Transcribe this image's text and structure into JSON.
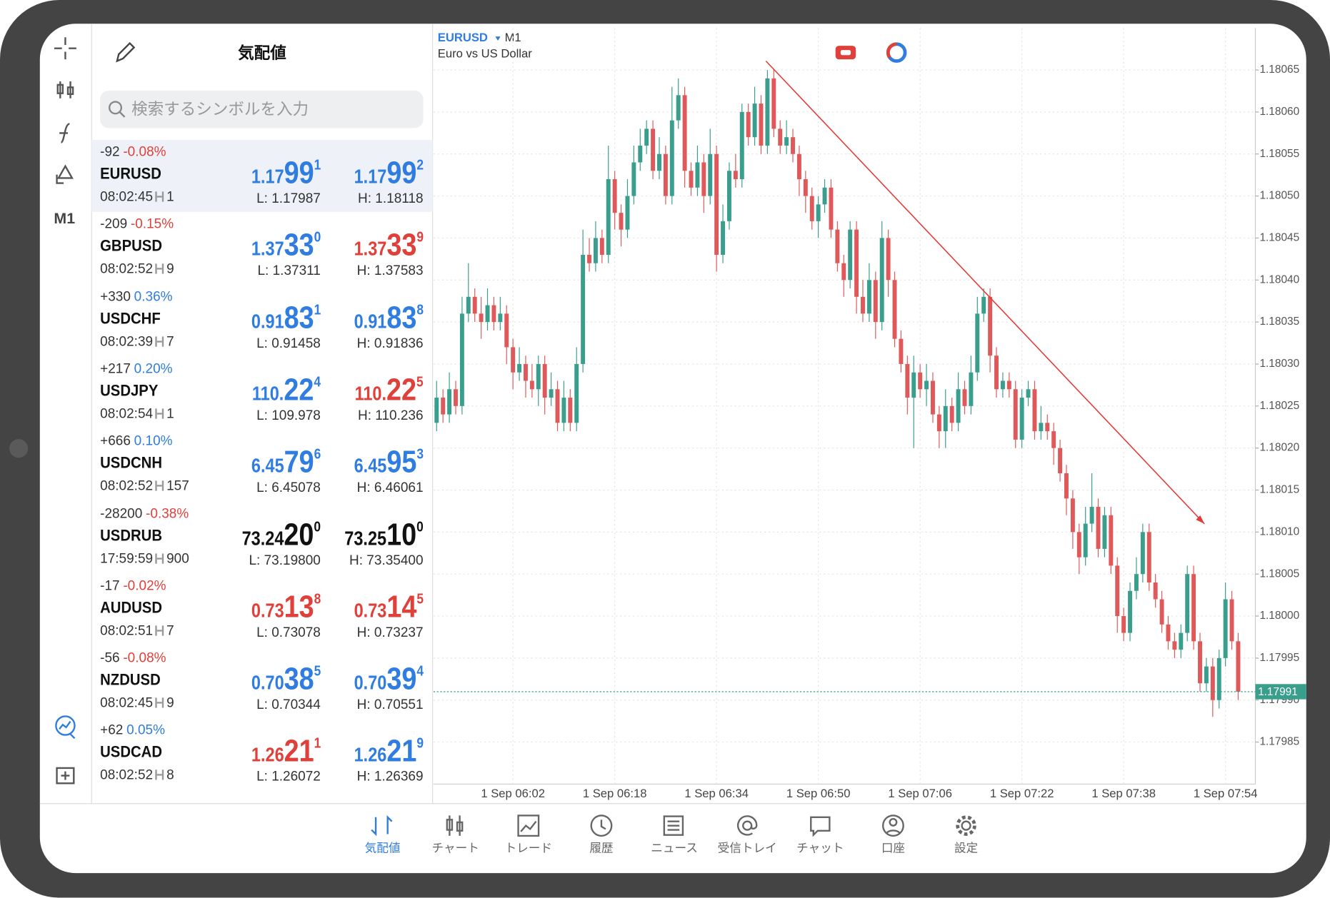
{
  "header": {
    "title": "気配値",
    "search_placeholder": "検索するシンボルを入力",
    "timeframe": "M1"
  },
  "quotes": [
    {
      "change": "-92",
      "percent": "-0.08%",
      "percent_color": "#e0403a",
      "symbol": "EURUSD",
      "time": "08:02:45",
      "spread": "1",
      "bid": [
        "1.17",
        "99",
        "1"
      ],
      "bid_color": "#2f7de1",
      "ask": [
        "1.17",
        "99",
        "2"
      ],
      "ask_color": "#2f7de1",
      "low": "L: 1.17987",
      "high": "H: 1.18118",
      "selected": true
    },
    {
      "change": "-209",
      "percent": "-0.15%",
      "percent_color": "#e0403a",
      "symbol": "GBPUSD",
      "time": "08:02:52",
      "spread": "9",
      "bid": [
        "1.37",
        "33",
        "0"
      ],
      "bid_color": "#2f7de1",
      "ask": [
        "1.37",
        "33",
        "9"
      ],
      "ask_color": "#e0403a",
      "low": "L: 1.37311",
      "high": "H: 1.37583"
    },
    {
      "change": "+330",
      "percent": "0.36%",
      "percent_color": "#2f7de1",
      "symbol": "USDCHF",
      "time": "08:02:39",
      "spread": "7",
      "bid": [
        "0.91",
        "83",
        "1"
      ],
      "bid_color": "#2f7de1",
      "ask": [
        "0.91",
        "83",
        "8"
      ],
      "ask_color": "#2f7de1",
      "low": "L: 0.91458",
      "high": "H: 0.91836"
    },
    {
      "change": "+217",
      "percent": "0.20%",
      "percent_color": "#2f7de1",
      "symbol": "USDJPY",
      "time": "08:02:54",
      "spread": "1",
      "bid": [
        "110.",
        "22",
        "4"
      ],
      "bid_color": "#2f7de1",
      "ask": [
        "110.",
        "22",
        "5"
      ],
      "ask_color": "#e0403a",
      "low": "L: 109.978",
      "high": "H: 110.236"
    },
    {
      "change": "+666",
      "percent": "0.10%",
      "percent_color": "#2f7de1",
      "symbol": "USDCNH",
      "time": "08:02:52",
      "spread": "157",
      "bid": [
        "6.45",
        "79",
        "6"
      ],
      "bid_color": "#2f7de1",
      "ask": [
        "6.45",
        "95",
        "3"
      ],
      "ask_color": "#2f7de1",
      "low": "L: 6.45078",
      "high": "H: 6.46061"
    },
    {
      "change": "-28200",
      "percent": "-0.38%",
      "percent_color": "#e0403a",
      "symbol": "USDRUB",
      "time": "17:59:59",
      "spread": "900",
      "bid": [
        "73.24",
        "20",
        "0"
      ],
      "bid_color": "#111111",
      "ask": [
        "73.25",
        "10",
        "0"
      ],
      "ask_color": "#111111",
      "low": "L: 73.19800",
      "high": "H: 73.35400"
    },
    {
      "change": "-17",
      "percent": "-0.02%",
      "percent_color": "#e0403a",
      "symbol": "AUDUSD",
      "time": "08:02:51",
      "spread": "7",
      "bid": [
        "0.73",
        "13",
        "8"
      ],
      "bid_color": "#e0403a",
      "ask": [
        "0.73",
        "14",
        "5"
      ],
      "ask_color": "#e0403a",
      "low": "L: 0.73078",
      "high": "H: 0.73237"
    },
    {
      "change": "-56",
      "percent": "-0.08%",
      "percent_color": "#e0403a",
      "symbol": "NZDUSD",
      "time": "08:02:45",
      "spread": "9",
      "bid": [
        "0.70",
        "38",
        "5"
      ],
      "bid_color": "#2f7de1",
      "ask": [
        "0.70",
        "39",
        "4"
      ],
      "ask_color": "#2f7de1",
      "low": "L: 0.70344",
      "high": "H: 0.70551"
    },
    {
      "change": "+62",
      "percent": "0.05%",
      "percent_color": "#2f7de1",
      "symbol": "USDCAD",
      "time": "08:02:52",
      "spread": "8",
      "bid": [
        "1.26",
        "21",
        "1"
      ],
      "bid_color": "#e0403a",
      "ask": [
        "1.26",
        "21",
        "9"
      ],
      "ask_color": "#2f7de1",
      "low": "L: 1.26072",
      "high": "H: 1.26369"
    }
  ],
  "nav": [
    "気配値",
    "チャート",
    "トレード",
    "履歴",
    "ニュース",
    "受信トレイ",
    "チャット",
    "口座",
    "設定"
  ],
  "chart_data": {
    "type": "candlestick",
    "symbol": "EURUSD",
    "timeframe": "M1",
    "description": "Euro vs US Dollar",
    "up_color": "#3a9e8d",
    "down_color": "#e0595a",
    "grid": true,
    "last_price": 1.17991,
    "last_price_color": "#3a9e8d",
    "ylim": [
      1.1798,
      1.1807
    ],
    "yticks": [
      1.17985,
      {
        "value": 1.1799,
        "label": "1.17990"
      },
      1.17995,
      {
        "value": 1.18,
        "label": "1.18000"
      },
      1.18005,
      {
        "value": 1.1801,
        "label": "1.18010"
      },
      1.18015,
      {
        "value": 1.1802,
        "label": "1.18020"
      },
      1.18025,
      {
        "value": 1.1803,
        "label": "1.18030"
      },
      1.18035,
      {
        "value": 1.1804,
        "label": "1.18040"
      },
      1.18045,
      {
        "value": 1.1805,
        "label": "1.18050"
      },
      1.18055,
      {
        "value": 1.1806,
        "label": "1.18060"
      },
      1.18065
    ],
    "categories": [
      null,
      null,
      null,
      null,
      null,
      null,
      null,
      null,
      null,
      null,
      null,
      null,
      "1 Sep 06:02",
      null,
      null,
      null,
      null,
      null,
      null,
      null,
      null,
      null,
      null,
      null,
      null,
      null,
      null,
      null,
      "1 Sep 06:18",
      null,
      null,
      null,
      null,
      null,
      null,
      null,
      null,
      null,
      null,
      null,
      null,
      null,
      null,
      null,
      "1 Sep 06:34",
      null,
      null,
      null,
      null,
      null,
      null,
      null,
      null,
      null,
      null,
      null,
      null,
      null,
      null,
      null,
      "1 Sep 06:50",
      null,
      null,
      null,
      null,
      null,
      null,
      null,
      null,
      null,
      null,
      null,
      null,
      null,
      null,
      null,
      "1 Sep 07:06",
      null,
      null,
      null,
      null,
      null,
      null,
      null,
      null,
      null,
      null,
      null,
      null,
      null,
      null,
      null,
      "1 Sep 07:22",
      null,
      null,
      null,
      null,
      null,
      null,
      null,
      null,
      null,
      null,
      null,
      null,
      null,
      null,
      null,
      "1 Sep 07:38",
      null,
      null,
      null,
      null,
      null,
      null,
      null,
      null,
      null,
      null,
      null,
      null,
      null,
      null,
      null,
      "1 Sep 07:54",
      null,
      null
    ],
    "candles": [
      [
        1.18023,
        1.18028,
        1.18022,
        1.18026
      ],
      [
        1.18026,
        1.18027,
        1.18023,
        1.18024
      ],
      [
        1.18024,
        1.18029,
        1.18023,
        1.18027
      ],
      [
        1.18027,
        1.18028,
        1.18024,
        1.18025
      ],
      [
        1.18025,
        1.18038,
        1.18024,
        1.18036
      ],
      [
        1.18036,
        1.18042,
        1.18035,
        1.18038
      ],
      [
        1.18038,
        1.18039,
        1.18035,
        1.18036
      ],
      [
        1.18036,
        1.18038,
        1.18033,
        1.18035
      ],
      [
        1.18035,
        1.18039,
        1.18034,
        1.18037
      ],
      [
        1.18037,
        1.18038,
        1.18034,
        1.18035
      ],
      [
        1.18035,
        1.18038,
        1.18034,
        1.18036
      ],
      [
        1.18036,
        1.18037,
        1.1803,
        1.18032
      ],
      [
        1.18032,
        1.18033,
        1.18027,
        1.18029
      ],
      [
        1.18029,
        1.18032,
        1.18028,
        1.1803
      ],
      [
        1.1803,
        1.18031,
        1.18026,
        1.18028
      ],
      [
        1.18028,
        1.1803,
        1.18026,
        1.18027
      ],
      [
        1.18027,
        1.18031,
        1.18025,
        1.1803
      ],
      [
        1.1803,
        1.18031,
        1.18024,
        1.18026
      ],
      [
        1.18026,
        1.18029,
        1.18025,
        1.18027
      ],
      [
        1.18027,
        1.18028,
        1.18022,
        1.18023
      ],
      [
        1.18023,
        1.18028,
        1.18022,
        1.18026
      ],
      [
        1.18026,
        1.18027,
        1.18022,
        1.18023
      ],
      [
        1.18023,
        1.18032,
        1.18022,
        1.1803
      ],
      [
        1.1803,
        1.18046,
        1.18029,
        1.18043
      ],
      [
        1.18043,
        1.18045,
        1.18041,
        1.18042
      ],
      [
        1.18042,
        1.18047,
        1.18041,
        1.18045
      ],
      [
        1.18045,
        1.18046,
        1.18042,
        1.18043
      ],
      [
        1.18043,
        1.18056,
        1.18042,
        1.18052
      ],
      [
        1.18052,
        1.18053,
        1.18046,
        1.18048
      ],
      [
        1.18048,
        1.18049,
        1.18044,
        1.18046
      ],
      [
        1.18046,
        1.18052,
        1.18045,
        1.1805
      ],
      [
        1.1805,
        1.18056,
        1.18049,
        1.18054
      ],
      [
        1.18054,
        1.18058,
        1.18053,
        1.18056
      ],
      [
        1.18056,
        1.18059,
        1.18055,
        1.18058
      ],
      [
        1.18058,
        1.18059,
        1.18052,
        1.18053
      ],
      [
        1.18053,
        1.18057,
        1.18052,
        1.18055
      ],
      [
        1.18055,
        1.18056,
        1.18049,
        1.1805
      ],
      [
        1.1805,
        1.18063,
        1.18049,
        1.18059
      ],
      [
        1.18059,
        1.18064,
        1.18058,
        1.18062
      ],
      [
        1.18062,
        1.18063,
        1.18051,
        1.18053
      ],
      [
        1.18053,
        1.18054,
        1.1805,
        1.18051
      ],
      [
        1.18051,
        1.18056,
        1.1805,
        1.18054
      ],
      [
        1.18054,
        1.18055,
        1.18048,
        1.1805
      ],
      [
        1.1805,
        1.18058,
        1.18049,
        1.18055
      ],
      [
        1.18055,
        1.18056,
        1.18041,
        1.18043
      ],
      [
        1.18043,
        1.18049,
        1.18042,
        1.18047
      ],
      [
        1.18047,
        1.18054,
        1.18046,
        1.18053
      ],
      [
        1.18053,
        1.18055,
        1.18051,
        1.18052
      ],
      [
        1.18052,
        1.18061,
        1.18051,
        1.1806
      ],
      [
        1.1806,
        1.18061,
        1.18056,
        1.18057
      ],
      [
        1.18057,
        1.18063,
        1.18056,
        1.18061
      ],
      [
        1.18061,
        1.18062,
        1.18055,
        1.18056
      ],
      [
        1.18056,
        1.18065,
        1.18055,
        1.18064
      ],
      [
        1.18064,
        1.18065,
        1.18057,
        1.18058
      ],
      [
        1.18058,
        1.18059,
        1.18055,
        1.18056
      ],
      [
        1.18056,
        1.18059,
        1.18055,
        1.18057
      ],
      [
        1.18057,
        1.18058,
        1.18054,
        1.18055
      ],
      [
        1.18055,
        1.18056,
        1.1805,
        1.18052
      ],
      [
        1.18052,
        1.18053,
        1.18048,
        1.1805
      ],
      [
        1.1805,
        1.18051,
        1.18046,
        1.18047
      ],
      [
        1.18047,
        1.1805,
        1.18045,
        1.18049
      ],
      [
        1.18049,
        1.18052,
        1.18048,
        1.18051
      ],
      [
        1.18051,
        1.18052,
        1.18045,
        1.18046
      ],
      [
        1.18046,
        1.18047,
        1.18041,
        1.18042
      ],
      [
        1.18042,
        1.18043,
        1.18038,
        1.1804
      ],
      [
        1.1804,
        1.18047,
        1.18039,
        1.18046
      ],
      [
        1.18046,
        1.18047,
        1.18036,
        1.18038
      ],
      [
        1.18038,
        1.1804,
        1.18035,
        1.18036
      ],
      [
        1.18036,
        1.18042,
        1.18035,
        1.1804
      ],
      [
        1.1804,
        1.18041,
        1.18033,
        1.18035
      ],
      [
        1.18035,
        1.18047,
        1.18034,
        1.18045
      ],
      [
        1.18045,
        1.18046,
        1.18038,
        1.1804
      ],
      [
        1.1804,
        1.18041,
        1.18032,
        1.18033
      ],
      [
        1.18033,
        1.18034,
        1.18029,
        1.1803
      ],
      [
        1.1803,
        1.18031,
        1.18024,
        1.18026
      ],
      [
        1.18026,
        1.18031,
        1.1802,
        1.18029
      ],
      [
        1.18029,
        1.1803,
        1.18026,
        1.18027
      ],
      [
        1.18027,
        1.1803,
        1.18025,
        1.18028
      ],
      [
        1.18028,
        1.18029,
        1.18023,
        1.18024
      ],
      [
        1.18024,
        1.18025,
        1.1802,
        1.18022
      ],
      [
        1.18022,
        1.18027,
        1.1802,
        1.18025
      ],
      [
        1.18025,
        1.18026,
        1.18022,
        1.18023
      ],
      [
        1.18023,
        1.18029,
        1.18022,
        1.18027
      ],
      [
        1.18027,
        1.18028,
        1.18024,
        1.18025
      ],
      [
        1.18025,
        1.18031,
        1.18024,
        1.18029
      ],
      [
        1.18029,
        1.18038,
        1.18028,
        1.18036
      ],
      [
        1.18036,
        1.18039,
        1.18035,
        1.18038
      ],
      [
        1.18038,
        1.18039,
        1.18029,
        1.18031
      ],
      [
        1.18031,
        1.18032,
        1.18026,
        1.18027
      ],
      [
        1.18027,
        1.18029,
        1.18026,
        1.18028
      ],
      [
        1.18028,
        1.18029,
        1.18026,
        1.18027
      ],
      [
        1.18027,
        1.18028,
        1.1802,
        1.18021
      ],
      [
        1.18021,
        1.18027,
        1.1802,
        1.18026
      ],
      [
        1.18026,
        1.18028,
        1.18025,
        1.18027
      ],
      [
        1.18027,
        1.18028,
        1.18021,
        1.18022
      ],
      [
        1.18022,
        1.18025,
        1.18021,
        1.18023
      ],
      [
        1.18023,
        1.18024,
        1.18021,
        1.18022
      ],
      [
        1.18022,
        1.18023,
        1.18018,
        1.1802
      ],
      [
        1.1802,
        1.18021,
        1.18016,
        1.18017
      ],
      [
        1.18017,
        1.18018,
        1.18012,
        1.18014
      ],
      [
        1.18014,
        1.18015,
        1.18008,
        1.1801
      ],
      [
        1.1801,
        1.18011,
        1.18005,
        1.18007
      ],
      [
        1.18007,
        1.18013,
        1.18006,
        1.18011
      ],
      [
        1.18011,
        1.18017,
        1.1801,
        1.18013
      ],
      [
        1.18013,
        1.18014,
        1.18007,
        1.18008
      ],
      [
        1.18008,
        1.18013,
        1.18007,
        1.18012
      ],
      [
        1.18012,
        1.18013,
        1.18005,
        1.18006
      ],
      [
        1.18006,
        1.18007,
        1.17998,
        1.18
      ],
      [
        1.18,
        1.18001,
        1.17997,
        1.17998
      ],
      [
        1.17998,
        1.18004,
        1.17997,
        1.18003
      ],
      [
        1.18003,
        1.18007,
        1.18002,
        1.18005
      ],
      [
        1.18005,
        1.18011,
        1.18004,
        1.1801
      ],
      [
        1.1801,
        1.18011,
        1.18003,
        1.18004
      ],
      [
        1.18004,
        1.18005,
        1.18001,
        1.18002
      ],
      [
        1.18002,
        1.18003,
        1.17998,
        1.17999
      ],
      [
        1.17999,
        1.18,
        1.17996,
        1.17997
      ],
      [
        1.17997,
        1.17998,
        1.17995,
        1.17996
      ],
      [
        1.17996,
        1.17999,
        1.17995,
        1.17998
      ],
      [
        1.17998,
        1.18006,
        1.17997,
        1.18005
      ],
      [
        1.18005,
        1.18006,
        1.17996,
        1.17997
      ],
      [
        1.17997,
        1.17998,
        1.17991,
        1.17992
      ],
      [
        1.17992,
        1.17995,
        1.17991,
        1.17994
      ],
      [
        1.17994,
        1.17995,
        1.17988,
        1.1799
      ],
      [
        1.1799,
        1.17996,
        1.17989,
        1.17995
      ],
      [
        1.17995,
        1.18004,
        1.17994,
        1.18002
      ],
      [
        1.18002,
        1.18003,
        1.17996,
        1.17997
      ],
      [
        1.17997,
        1.17998,
        1.1799,
        1.17991
      ]
    ]
  }
}
